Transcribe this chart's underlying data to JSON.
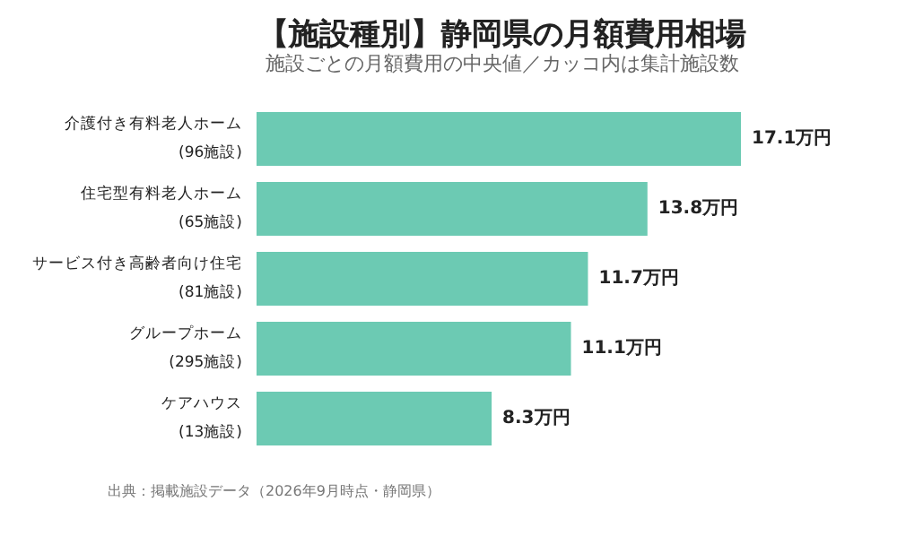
{
  "chart_data": {
    "type": "bar",
    "orientation": "horizontal",
    "title": "【施設種別】静岡県の月額費用相場",
    "subtitle": "施設ごとの月額費用の中央値／カッコ内は集計施設数",
    "categories": [
      "介護付き有料老人ホーム\n(96施設)",
      "住宅型有料老人ホーム\n(65施設)",
      "サービス付き高齢者向け住宅\n(81施設)",
      "グループホーム\n(295施設)",
      "ケアハウス\n(13施設)"
    ],
    "values": [
      17.1,
      13.8,
      11.7,
      11.1,
      8.3
    ],
    "value_labels": [
      "17.1万円",
      "13.8万円",
      "11.7万円",
      "11.1万円",
      "8.3万円"
    ],
    "color": "#6ccab3",
    "annotations": [
      "出典：掲載施設データ（2026年9月時点・静岡県）"
    ]
  }
}
